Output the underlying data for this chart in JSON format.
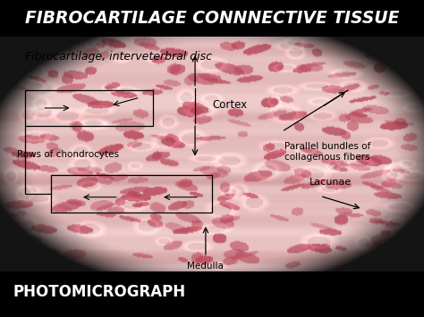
{
  "title": "FIBROCARTILAGE CONNNECTIVE TISSUE",
  "title_color": "#FFFFFF",
  "title_bg": "#000000",
  "subtitle": "Fibrocartilage, interveterbral disc",
  "bottom_text": "PHOTOMICROGRAPH",
  "bottom_text_color": "#FFFFFF",
  "bottom_bg": "#6b6560",
  "figsize": [
    4.74,
    3.55
  ],
  "dpi": 100,
  "tissue_base_r": 0.91,
  "tissue_base_g": 0.76,
  "tissue_base_b": 0.76,
  "cell_color_r": 0.72,
  "cell_color_g": 0.28,
  "cell_color_b": 0.35
}
